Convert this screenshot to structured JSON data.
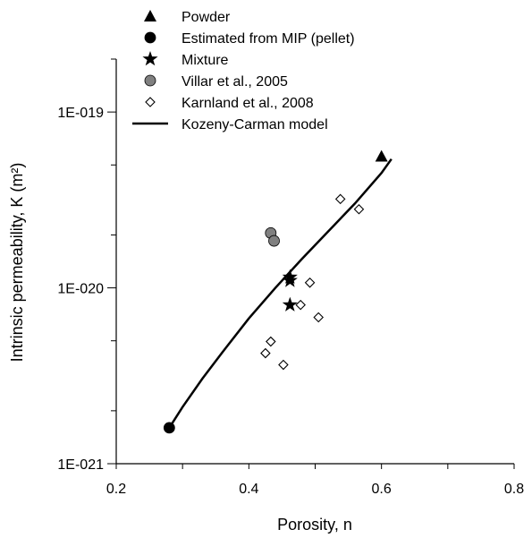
{
  "chart_data": {
    "type": "scatter",
    "xlabel": "Porosity, n",
    "ylabel": "Intrinsic permeability, K (m²)",
    "xlim": [
      0.2,
      0.8
    ],
    "ylim": [
      1e-21,
      2e-19
    ],
    "yscale": "log",
    "x_ticks": [
      0.2,
      0.4,
      0.6,
      0.8
    ],
    "x_tick_labels": [
      "0.2",
      "0.4",
      "0.6",
      "0.8"
    ],
    "y_ticks": [
      1e-21,
      1e-20,
      1e-19
    ],
    "y_tick_labels": [
      "1E-021",
      "1E-020",
      "1E-019"
    ],
    "grid": false,
    "legend_position": "top-left",
    "series": [
      {
        "name": "Powder",
        "marker": "triangle",
        "color": "#000000",
        "points": [
          [
            0.6,
            5.6e-20
          ]
        ]
      },
      {
        "name": "Estimated from MIP (pellet)",
        "marker": "circle",
        "color": "#000000",
        "points": [
          [
            0.28,
            1.6e-21
          ]
        ]
      },
      {
        "name": "Mixture",
        "marker": "star",
        "color": "#000000",
        "points": [
          [
            0.462,
            1.15e-20
          ],
          [
            0.462,
            1.1e-20
          ],
          [
            0.462,
            8e-21
          ]
        ]
      },
      {
        "name": "Villar et al., 2005",
        "marker": "circle",
        "color": "#808080",
        "points": [
          [
            0.433,
            2.05e-20
          ],
          [
            0.438,
            1.85e-20
          ]
        ]
      },
      {
        "name": "Karnland et al., 2008",
        "marker": "diamond-open",
        "color": "#000000",
        "points": [
          [
            0.538,
            3.2e-20
          ],
          [
            0.566,
            2.8e-20
          ],
          [
            0.492,
            1.07e-20
          ],
          [
            0.478,
            8e-21
          ],
          [
            0.505,
            6.8e-21
          ],
          [
            0.433,
            4.95e-21
          ],
          [
            0.425,
            4.25e-21
          ],
          [
            0.452,
            3.65e-21
          ]
        ]
      },
      {
        "name": "Kozeny-Carman model",
        "marker": "line",
        "color": "#000000",
        "points": [
          [
            0.28,
            1.6e-21
          ],
          [
            0.3,
            2.1e-21
          ],
          [
            0.33,
            3.05e-21
          ],
          [
            0.36,
            4.3e-21
          ],
          [
            0.4,
            6.7e-21
          ],
          [
            0.44,
            1e-20
          ],
          [
            0.48,
            1.46e-20
          ],
          [
            0.52,
            2.1e-20
          ],
          [
            0.56,
            3.02e-20
          ],
          [
            0.6,
            4.5e-20
          ],
          [
            0.615,
            5.4e-20
          ]
        ]
      }
    ]
  }
}
